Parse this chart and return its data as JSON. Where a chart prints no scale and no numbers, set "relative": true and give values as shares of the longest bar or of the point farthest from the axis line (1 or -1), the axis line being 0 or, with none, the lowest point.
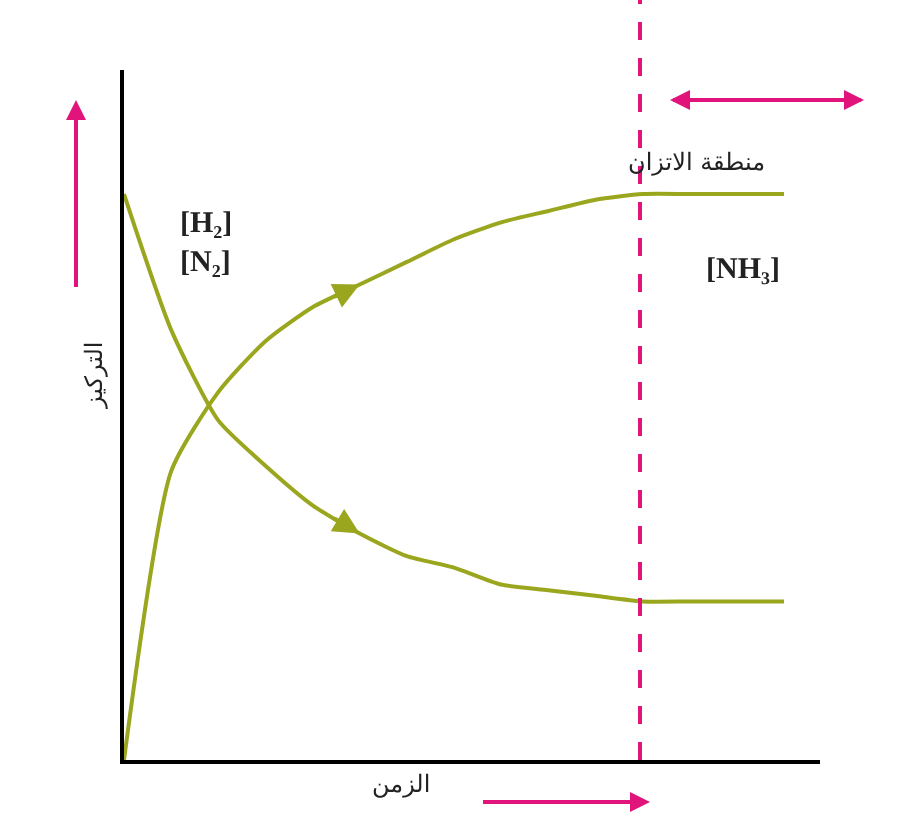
{
  "chart_data": {
    "type": "line",
    "relative": true,
    "xlabel": "الزمن",
    "ylabel": "التركيز",
    "categories": [
      null,
      null,
      null,
      null,
      null,
      null,
      null,
      null,
      null,
      null,
      null,
      null,
      null,
      null,
      null
    ],
    "series": [
      {
        "name": "[H₂]\n[N₂]",
        "color": "#9aa61e",
        "values": [
          1.0,
          0.76,
          0.6,
          0.52,
          0.45,
          0.4,
          0.36,
          0.34,
          0.31,
          0.3,
          0.29,
          0.28,
          0.28,
          0.28,
          0.28
        ]
      },
      {
        "name": "[NH₃]",
        "color": "#9aa61e",
        "values": [
          0,
          0.51,
          0.65,
          0.74,
          0.8,
          0.84,
          0.88,
          0.92,
          0.95,
          0.97,
          0.99,
          1,
          1,
          1,
          1
        ]
      }
    ],
    "annotations": [
      "منطقة الاتزان"
    ],
    "legend": false,
    "marker": "none",
    "line_style": "solid",
    "tick_labels": false
  }
}
